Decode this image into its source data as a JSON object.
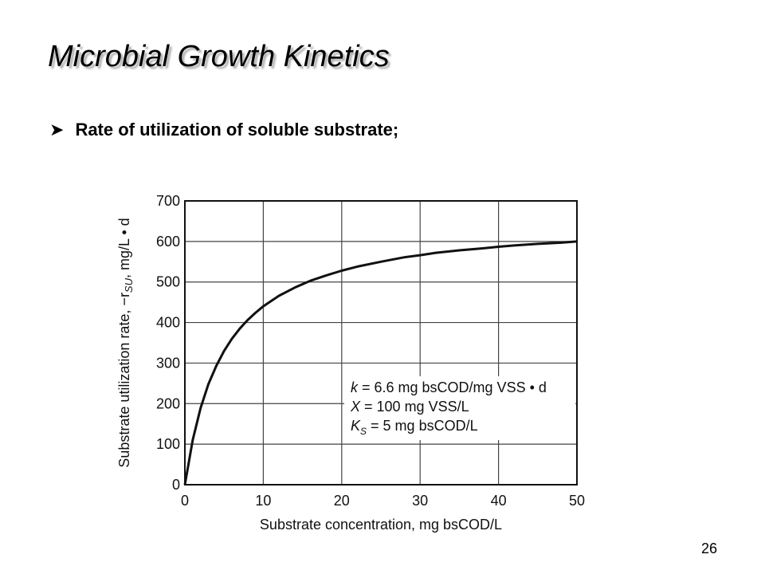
{
  "slide": {
    "title": "Microbial Growth Kinetics",
    "bullet_icon": "arrow-bullet-icon",
    "bullet_text": "Rate of utilization of soluble substrate;",
    "page_number": "26"
  },
  "chart_data": {
    "type": "line",
    "title": "",
    "xlabel": "Substrate concentration, mg bsCOD/L",
    "ylabel_prefix": "Substrate utilization rate, −r",
    "ylabel_sub": "SU",
    "ylabel_suffix": ", mg/L • d",
    "xlim": [
      0,
      50
    ],
    "ylim": [
      0,
      700
    ],
    "xticks": [
      0,
      10,
      20,
      30,
      40,
      50
    ],
    "yticks": [
      0,
      100,
      200,
      300,
      400,
      500,
      600,
      700
    ],
    "grid": true,
    "annotations": [
      {
        "sym": "k",
        "sub": "",
        "text": " = 6.6 mg bsCOD/mg VSS • d"
      },
      {
        "sym": "X",
        "sub": "",
        "text": " = 100 mg VSS/L"
      },
      {
        "sym": "K",
        "sub": "S",
        "text": " = 5 mg bsCOD/L"
      }
    ],
    "series": [
      {
        "x": [
          0,
          1,
          2,
          3,
          4,
          5,
          6,
          7,
          8,
          9,
          10,
          12,
          14,
          16,
          18,
          20,
          22,
          25,
          28,
          30,
          32,
          35,
          38,
          40,
          42,
          45,
          48,
          50
        ],
        "y": [
          0,
          110,
          189,
          248,
          293,
          330,
          360,
          385,
          406,
          424,
          440,
          466,
          486,
          503,
          516,
          528,
          538,
          550,
          561,
          566,
          572,
          578,
          583,
          587,
          590,
          594,
          597,
          600
        ]
      }
    ]
  }
}
